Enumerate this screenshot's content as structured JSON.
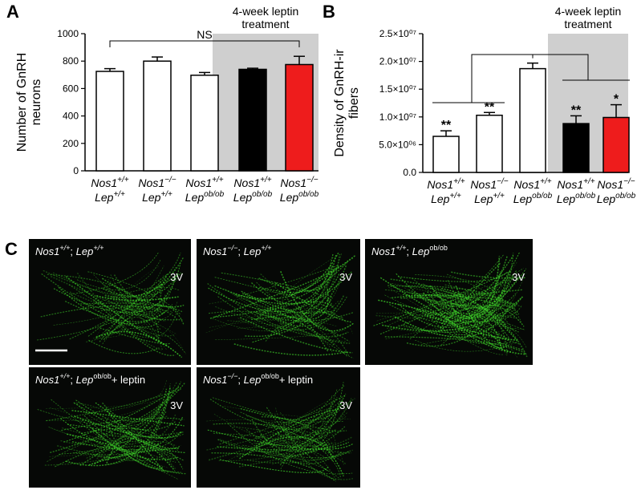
{
  "chart_data": [
    {
      "type": "bar",
      "panel": "A",
      "ylabel": [
        "Number of GnRH",
        "neurons"
      ],
      "categories": [
        [
          [
            {
              "text": "Nos1",
              "style": "italic"
            },
            {
              "text": "+/+",
              "style": "italic-sup"
            }
          ],
          [
            {
              "text": "Lep",
              "style": "italic"
            },
            {
              "text": "+/+",
              "style": "italic-sup"
            }
          ]
        ],
        [
          [
            {
              "text": "Nos1",
              "style": "italic"
            },
            {
              "text": "−/−",
              "style": "italic-sup"
            }
          ],
          [
            {
              "text": "Lep",
              "style": "italic"
            },
            {
              "text": "+/+",
              "style": "italic-sup"
            }
          ]
        ],
        [
          [
            {
              "text": "Nos1",
              "style": "italic"
            },
            {
              "text": "+/+",
              "style": "italic-sup"
            }
          ],
          [
            {
              "text": "Lep",
              "style": "italic"
            },
            {
              "text": "ob/ob",
              "style": "italic-sup"
            }
          ]
        ],
        [
          [
            {
              "text": "Nos1",
              "style": "italic"
            },
            {
              "text": "+/+",
              "style": "italic-sup"
            }
          ],
          [
            {
              "text": "Lep",
              "style": "italic"
            },
            {
              "text": "ob/ob",
              "style": "italic-sup"
            }
          ]
        ],
        [
          [
            {
              "text": "Nos1",
              "style": "italic"
            },
            {
              "text": "−/−",
              "style": "italic-sup"
            }
          ],
          [
            {
              "text": "Lep",
              "style": "italic"
            },
            {
              "text": "ob/ob",
              "style": "italic-sup"
            }
          ]
        ]
      ],
      "values": [
        725,
        800,
        697,
        740,
        775
      ],
      "errors": [
        20,
        30,
        20,
        8,
        60
      ],
      "colors": [
        "#ffffff",
        "#ffffff",
        "#ffffff",
        "#000000",
        "#ee1c1c"
      ],
      "ylim": [
        0,
        1000
      ],
      "yticks": [
        0,
        200,
        400,
        600,
        800,
        1000
      ],
      "annotation": "NS",
      "shade_label": [
        "4-week leptin",
        "treatment"
      ]
    },
    {
      "type": "bar",
      "panel": "B",
      "ylabel": [
        "Density of GnRH-ir",
        "fibers"
      ],
      "categories": [
        [
          [
            {
              "text": "Nos1",
              "style": "italic"
            },
            {
              "text": "+/+",
              "style": "italic-sup"
            }
          ],
          [
            {
              "text": "Lep",
              "style": "italic"
            },
            {
              "text": "+/+",
              "style": "italic-sup"
            }
          ]
        ],
        [
          [
            {
              "text": "Nos1",
              "style": "italic"
            },
            {
              "text": "−/−",
              "style": "italic-sup"
            }
          ],
          [
            {
              "text": "Lep",
              "style": "italic"
            },
            {
              "text": "+/+",
              "style": "italic-sup"
            }
          ]
        ],
        [
          [
            {
              "text": "Nos1",
              "style": "italic"
            },
            {
              "text": "+/+",
              "style": "italic-sup"
            }
          ],
          [
            {
              "text": "Lep",
              "style": "italic"
            },
            {
              "text": "ob/ob",
              "style": "italic-sup"
            }
          ]
        ],
        [
          [
            {
              "text": "Nos1",
              "style": "italic"
            },
            {
              "text": "+/+",
              "style": "italic-sup"
            }
          ],
          [
            {
              "text": "Lep",
              "style": "italic"
            },
            {
              "text": "ob/ob",
              "style": "italic-sup"
            }
          ]
        ],
        [
          [
            {
              "text": "Nos1",
              "style": "italic"
            },
            {
              "text": "−/−",
              "style": "italic-sup"
            }
          ],
          [
            {
              "text": "Lep",
              "style": "italic"
            },
            {
              "text": "ob/ob",
              "style": "italic-sup"
            }
          ]
        ]
      ],
      "values": [
        6500000,
        10300000,
        18700000,
        8800000,
        9900000
      ],
      "errors": [
        1000000,
        500000,
        1000000,
        1400000,
        2300000
      ],
      "significance": [
        "**",
        "**",
        null,
        "**",
        "*"
      ],
      "colors": [
        "#ffffff",
        "#ffffff",
        "#ffffff",
        "#000000",
        "#ee1c1c"
      ],
      "ylim": [
        0,
        25000000
      ],
      "yticks": [
        {
          "value": 0,
          "label": "0.0"
        },
        {
          "value": 5000000,
          "label": "5.0×10⁰⁶"
        },
        {
          "value": 10000000,
          "label": "1.0×10⁰⁷"
        },
        {
          "value": 15000000,
          "label": "1.5×10⁰⁷"
        },
        {
          "value": 20000000,
          "label": "2.0×10⁰⁷"
        },
        {
          "value": 25000000,
          "label": "2.5×10⁰⁷"
        }
      ],
      "shade_label": [
        "4-week leptin",
        "treatment"
      ]
    }
  ],
  "panel_c": {
    "panel": "C",
    "images": [
      {
        "caption": [
          {
            "text": "Nos1",
            "style": "italic"
          },
          {
            "text": "+/+",
            "style": "italic-sup"
          },
          {
            "text": "; ",
            "style": "normal"
          },
          {
            "text": "Lep",
            "style": "italic"
          },
          {
            "text": "+/+",
            "style": "italic-sup"
          }
        ],
        "marker": "3V"
      },
      {
        "caption": [
          {
            "text": "Nos1",
            "style": "italic"
          },
          {
            "text": "−/−",
            "style": "italic-sup"
          },
          {
            "text": "; ",
            "style": "normal"
          },
          {
            "text": "Lep",
            "style": "italic"
          },
          {
            "text": "+/+",
            "style": "italic-sup"
          }
        ],
        "marker": "3V"
      },
      {
        "caption": [
          {
            "text": "Nos1",
            "style": "italic"
          },
          {
            "text": "+/+",
            "style": "italic-sup"
          },
          {
            "text": "; ",
            "style": "normal"
          },
          {
            "text": "Lep",
            "style": "italic"
          },
          {
            "text": "ob/ob",
            "style": "sup"
          }
        ],
        "marker": "3V"
      },
      {
        "caption": [
          {
            "text": "Nos1",
            "style": "italic"
          },
          {
            "text": "+/+",
            "style": "italic-sup"
          },
          {
            "text": "; ",
            "style": "normal"
          },
          {
            "text": "Lep",
            "style": "italic"
          },
          {
            "text": "ob/ob",
            "style": "sup"
          },
          {
            "text": "+ leptin",
            "style": "normal"
          }
        ],
        "marker": "3V"
      },
      {
        "caption": [
          {
            "text": "Nos1",
            "style": "italic"
          },
          {
            "text": "−/−",
            "style": "italic-sup"
          },
          {
            "text": "; ",
            "style": "normal"
          },
          {
            "text": "Lep",
            "style": "italic"
          },
          {
            "text": "ob/ob",
            "style": "sup"
          },
          {
            "text": "+ leptin",
            "style": "normal"
          }
        ],
        "marker": "3V"
      }
    ]
  }
}
